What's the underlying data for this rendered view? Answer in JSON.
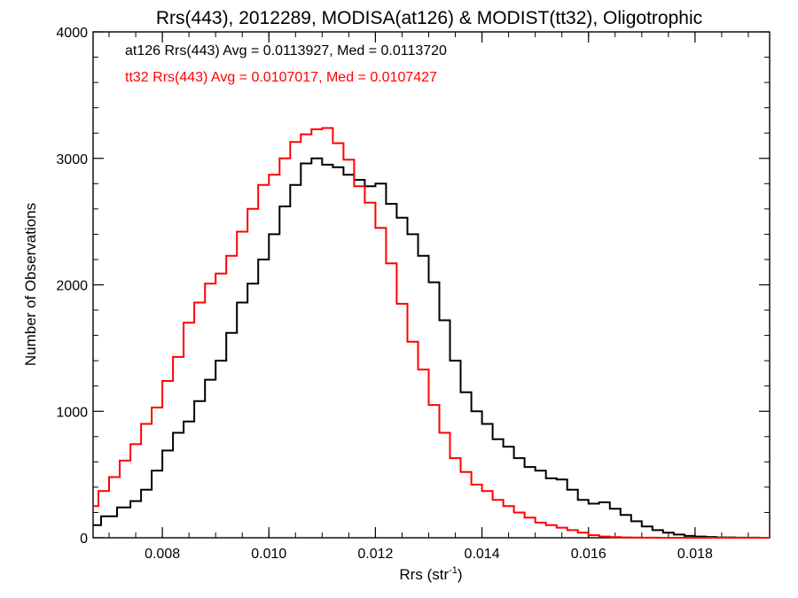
{
  "chart_data": {
    "type": "line",
    "title": "Rrs(443), 2012289, MODISA(at126) & MODIST(tt32), Oligotrophic",
    "xlabel_main": "Rrs (str",
    "xlabel_sup": "-1",
    "xlabel_close": ")",
    "ylabel": "Number of Observations",
    "xlim": [
      0.0067,
      0.0194
    ],
    "ylim": [
      0,
      4000
    ],
    "x_ticks": [
      {
        "value": 0.008,
        "label": "0.008"
      },
      {
        "value": 0.01,
        "label": "0.010"
      },
      {
        "value": 0.012,
        "label": "0.012"
      },
      {
        "value": 0.014,
        "label": "0.014"
      },
      {
        "value": 0.016,
        "label": "0.016"
      },
      {
        "value": 0.018,
        "label": "0.018"
      }
    ],
    "y_ticks": [
      {
        "value": 0,
        "label": "0"
      },
      {
        "value": 1000,
        "label": "1000"
      },
      {
        "value": 2000,
        "label": "2000"
      },
      {
        "value": 3000,
        "label": "3000"
      },
      {
        "value": 4000,
        "label": "4000"
      }
    ],
    "grid": false,
    "annotations": [
      {
        "text": "at126 Rrs(443) Avg = 0.0113927, Med = 0.0113720",
        "color": "#000000"
      },
      {
        "text": "tt32 Rrs(443) Avg = 0.0107017, Med = 0.0107427",
        "color": "#ff0000"
      }
    ],
    "series": [
      {
        "color": "#000000",
        "x": [
          0.0067,
          0.007,
          0.0073,
          0.0075,
          0.0077,
          0.0079,
          0.0081,
          0.0083,
          0.0085,
          0.0087,
          0.0089,
          0.0091,
          0.0093,
          0.0095,
          0.0097,
          0.0099,
          0.0101,
          0.0103,
          0.0105,
          0.0107,
          0.0109,
          0.0111,
          0.0113,
          0.0115,
          0.0117,
          0.0119,
          0.0121,
          0.0123,
          0.0125,
          0.0127,
          0.0129,
          0.0131,
          0.0133,
          0.0135,
          0.0137,
          0.0139,
          0.0141,
          0.0143,
          0.0145,
          0.0147,
          0.0149,
          0.0151,
          0.0153,
          0.0155,
          0.0157,
          0.0159,
          0.0161,
          0.0163,
          0.0165,
          0.0167,
          0.0169,
          0.0171,
          0.0173,
          0.0175,
          0.0177,
          0.0179,
          0.0181,
          0.0183,
          0.0185,
          0.019,
          0.0194
        ],
        "y": [
          100,
          170,
          240,
          290,
          380,
          530,
          690,
          830,
          920,
          1080,
          1250,
          1400,
          1620,
          1860,
          2010,
          2200,
          2400,
          2620,
          2790,
          2960,
          3000,
          2950,
          2930,
          2870,
          2830,
          2780,
          2800,
          2640,
          2530,
          2400,
          2230,
          2020,
          1720,
          1400,
          1150,
          1000,
          900,
          780,
          720,
          630,
          560,
          530,
          470,
          460,
          380,
          300,
          270,
          280,
          230,
          180,
          130,
          90,
          60,
          40,
          25,
          15,
          10,
          6,
          3,
          1,
          0
        ]
      },
      {
        "color": "#ff0000",
        "x": [
          0.0067,
          0.0069,
          0.0071,
          0.0073,
          0.0075,
          0.0077,
          0.0079,
          0.0081,
          0.0083,
          0.0085,
          0.0087,
          0.0089,
          0.0091,
          0.0093,
          0.0095,
          0.0097,
          0.0099,
          0.0101,
          0.0103,
          0.0105,
          0.0107,
          0.0109,
          0.0111,
          0.0113,
          0.0115,
          0.0117,
          0.0119,
          0.0121,
          0.0123,
          0.0125,
          0.0127,
          0.0129,
          0.0131,
          0.0133,
          0.0135,
          0.0137,
          0.0139,
          0.0141,
          0.0143,
          0.0145,
          0.0147,
          0.0149,
          0.0151,
          0.0153,
          0.0155,
          0.0157,
          0.0159,
          0.0161,
          0.0163,
          0.0165,
          0.0167,
          0.0169,
          0.0171,
          0.0175,
          0.018,
          0.0185,
          0.0194
        ],
        "y": [
          250,
          370,
          480,
          610,
          740,
          900,
          1030,
          1240,
          1430,
          1700,
          1860,
          2010,
          2090,
          2230,
          2420,
          2600,
          2790,
          2870,
          3000,
          3130,
          3190,
          3230,
          3240,
          3120,
          2990,
          2780,
          2650,
          2450,
          2170,
          1850,
          1550,
          1330,
          1050,
          830,
          630,
          520,
          420,
          370,
          300,
          250,
          200,
          160,
          120,
          100,
          80,
          60,
          40,
          20,
          10,
          5,
          3,
          2,
          1,
          0,
          0,
          0,
          0
        ]
      }
    ]
  }
}
